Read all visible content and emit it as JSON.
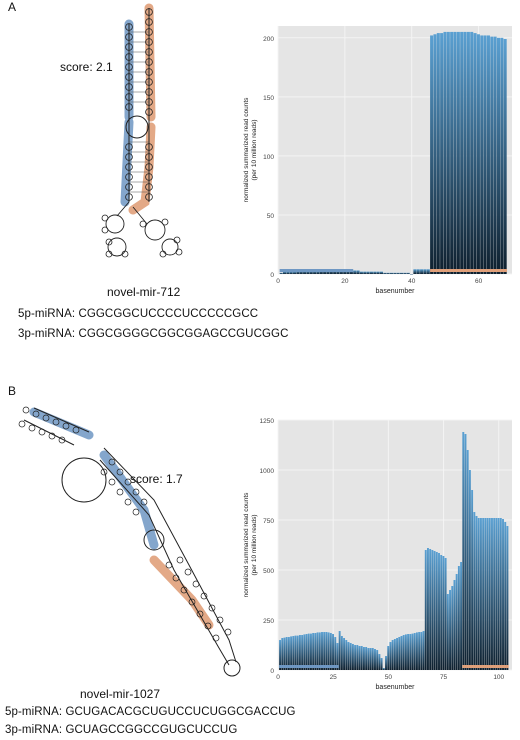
{
  "panels": [
    {
      "letter": "A",
      "score_label": "score: 2.1",
      "mirna_name": "novel-mir-712",
      "seq5p_label": "5p-miRNA:",
      "seq5p": "CGGCGGCUCCCCUCCCCCGCC",
      "seq3p_label": "3p-miRNA:",
      "seq3p": "CGGCGGGGCGGCGGAGCCGUCGGC"
    },
    {
      "letter": "B",
      "score_label": "score: 1.7",
      "mirna_name": "novel-mir-1027",
      "seq5p_label": "5p-miRNA:",
      "seq5p": "GCUGACACGCUGUCCUCUGGCGACCUG",
      "seq3p_label": "3p-miRNA:",
      "seq3p": "GCUAGCCGGCCGUGCUCCUG"
    }
  ],
  "colors": {
    "plot_bg": "#e5e5e5",
    "grid": "#f4f4f4",
    "bar_top": "#5aa0d2",
    "bar_bottom": "#0e1f2d",
    "arm5p": "#6e97c3",
    "arm3p": "#e0a07a"
  },
  "chart_data": [
    {
      "type": "bar",
      "xlabel": "basenumber",
      "ylabel": "normalized summarized read counts (per 10 million reads)",
      "ylabel_line1": "normalized summarized read counts",
      "ylabel_line2": "(per 10 million reads)",
      "xlim": [
        0,
        70
      ],
      "ylim": [
        0,
        210
      ],
      "xticks": [
        0,
        20,
        40,
        60
      ],
      "yticks": [
        0,
        50,
        100,
        150,
        200
      ],
      "x": [
        1,
        2,
        3,
        4,
        5,
        6,
        7,
        8,
        9,
        10,
        11,
        12,
        13,
        14,
        15,
        16,
        17,
        18,
        19,
        20,
        21,
        22,
        23,
        24,
        25,
        26,
        27,
        28,
        29,
        30,
        31,
        32,
        33,
        34,
        35,
        36,
        37,
        38,
        39,
        40,
        41,
        42,
        43,
        44,
        45,
        46,
        47,
        48,
        49,
        50,
        51,
        52,
        53,
        54,
        55,
        56,
        57,
        58,
        59,
        60,
        61,
        62,
        63,
        64,
        65,
        66,
        67,
        68
      ],
      "values": [
        1,
        2,
        2,
        2,
        2,
        3,
        3,
        3,
        3,
        3,
        3,
        3,
        4,
        4,
        4,
        4,
        4,
        4,
        4,
        4,
        4,
        4,
        3,
        3,
        2,
        2,
        2,
        2,
        2,
        2,
        2,
        1,
        1,
        1,
        1,
        1,
        1,
        1,
        1,
        0,
        4,
        4,
        4,
        4,
        4,
        202,
        203,
        204,
        204,
        205,
        205,
        205,
        205,
        205,
        205,
        205,
        205,
        205,
        204,
        203,
        202,
        202,
        202,
        201,
        201,
        200,
        200,
        199
      ],
      "arm_5p": [
        1,
        22
      ],
      "arm_3p": [
        46,
        68
      ]
    },
    {
      "type": "bar",
      "xlabel": "basenumber",
      "ylabel": "normalized summarized read counts (per 10 million reads)",
      "ylabel_line1": "normalized summarized read counts",
      "ylabel_line2": "(per 10 million reads)",
      "xlim": [
        0,
        106
      ],
      "ylim": [
        0,
        1250
      ],
      "xticks": [
        0,
        25,
        50,
        75,
        100
      ],
      "yticks": [
        0,
        250,
        500,
        750,
        1000,
        1250
      ],
      "x": [
        1,
        2,
        3,
        4,
        5,
        6,
        7,
        8,
        9,
        10,
        11,
        12,
        13,
        14,
        15,
        16,
        17,
        18,
        19,
        20,
        21,
        22,
        23,
        24,
        25,
        26,
        27,
        28,
        29,
        30,
        31,
        32,
        33,
        34,
        35,
        36,
        37,
        38,
        39,
        40,
        41,
        42,
        43,
        44,
        45,
        46,
        47,
        48,
        49,
        50,
        51,
        52,
        53,
        54,
        55,
        56,
        57,
        58,
        59,
        60,
        61,
        62,
        63,
        64,
        65,
        66,
        67,
        68,
        69,
        70,
        71,
        72,
        73,
        74,
        75,
        76,
        77,
        78,
        79,
        80,
        81,
        82,
        83,
        84,
        85,
        86,
        87,
        88,
        89,
        90,
        91,
        92,
        93,
        94,
        95,
        96,
        97,
        98,
        99,
        100,
        101,
        102,
        103,
        104
      ],
      "values": [
        150,
        160,
        162,
        165,
        165,
        168,
        170,
        172,
        172,
        175,
        175,
        178,
        180,
        182,
        182,
        185,
        185,
        188,
        188,
        190,
        190,
        190,
        188,
        185,
        180,
        165,
        135,
        195,
        170,
        160,
        150,
        140,
        135,
        130,
        125,
        125,
        120,
        120,
        115,
        115,
        110,
        110,
        110,
        105,
        100,
        80,
        60,
        10,
        70,
        120,
        140,
        150,
        155,
        160,
        165,
        170,
        175,
        178,
        180,
        180,
        182,
        185,
        188,
        190,
        190,
        195,
        600,
        610,
        605,
        600,
        595,
        590,
        585,
        575,
        570,
        560,
        380,
        400,
        420,
        450,
        480,
        520,
        540,
        1190,
        1180,
        1100,
        1000,
        900,
        790,
        770,
        760,
        760,
        760,
        760,
        760,
        760,
        760,
        760,
        760,
        760,
        760,
        755,
        740,
        720
      ],
      "arm_5p": [
        1,
        27
      ],
      "arm_3p": [
        84,
        104
      ]
    }
  ]
}
